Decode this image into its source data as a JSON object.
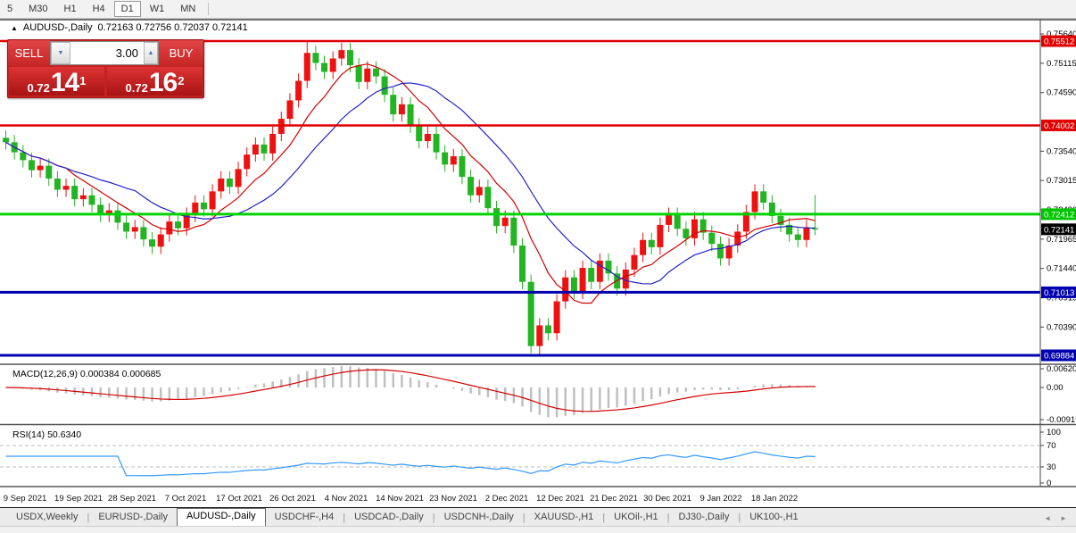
{
  "toolbar": {
    "timeframes": [
      {
        "label": "5",
        "active": false
      },
      {
        "label": "M30",
        "active": false
      },
      {
        "label": "H1",
        "active": false
      },
      {
        "label": "H4",
        "active": false
      },
      {
        "label": "D1",
        "active": true
      },
      {
        "label": "W1",
        "active": false
      },
      {
        "label": "MN",
        "active": false
      }
    ]
  },
  "chart": {
    "collapse_arrow": "▲",
    "title_symbol": "AUDUSD-,Daily",
    "title_ohlc": "0.72163 0.72756 0.72037 0.72141"
  },
  "trade_panel": {
    "sell_label": "SELL",
    "buy_label": "BUY",
    "volume": "3.00",
    "sell_price": {
      "big": "0.72",
      "main": "14",
      "sup": "1"
    },
    "buy_price": {
      "big": "0.72",
      "main": "16",
      "sup": "2"
    }
  },
  "price_axis": {
    "ticks": [
      "0.75640",
      "0.75115",
      "0.74590",
      "0.73540",
      "0.73015",
      "0.72490",
      "0.71965",
      "0.71440",
      "0.70915",
      "0.70390"
    ],
    "level_boxes": [
      {
        "text": "0.75512",
        "color": "#e00000",
        "text_color": "#ffffff"
      },
      {
        "text": "0.74002",
        "color": "#e00000",
        "text_color": "#ffffff"
      },
      {
        "text": "0.72412",
        "color": "#00c400",
        "text_color": "#ffffff"
      },
      {
        "text": "0.71013",
        "color": "#0000b0",
        "text_color": "#ffffff"
      },
      {
        "text": "0.69884",
        "color": "#0000b0",
        "text_color": "#ffffff"
      }
    ],
    "current_price_box": {
      "text": "0.72141",
      "color": "#000000",
      "text_color": "#ffffff"
    }
  },
  "macd_panel": {
    "label": "MACD(12,26,9) 0.000384 0.000685",
    "axis": [
      "0.006201",
      "0.00",
      "-0.00919"
    ]
  },
  "rsi_panel": {
    "label": "RSI(14) 50.6340",
    "axis": [
      "100",
      "70",
      "30",
      "0"
    ]
  },
  "tabs": {
    "items": [
      {
        "label": "USDX,Weekly",
        "active": false
      },
      {
        "label": "EURUSD-,Daily",
        "active": false
      },
      {
        "label": "AUDUSD-,Daily",
        "active": true
      },
      {
        "label": "USDCHF-,H4",
        "active": false
      },
      {
        "label": "USDCAD-,Daily",
        "active": false
      },
      {
        "label": "USDCNH-,Daily",
        "active": false
      },
      {
        "label": "XAUUSD-,H1",
        "active": false
      },
      {
        "label": "UKOil-,H1",
        "active": false
      },
      {
        "label": "DJ30-,Daily",
        "active": false
      },
      {
        "label": "UK100-,H1",
        "active": false
      }
    ]
  },
  "chart_data": {
    "type": "candlestick",
    "symbol": "AUDUSD",
    "timeframe": "Daily",
    "current_bar": {
      "open": 0.72163,
      "high": 0.72756,
      "low": 0.72037,
      "close": 0.72141
    },
    "price_range": {
      "top": 0.75864,
      "bottom": 0.69724
    },
    "levels": [
      {
        "price": 0.75512,
        "color": "#e00000",
        "width": 2.5
      },
      {
        "price": 0.74002,
        "color": "#e00000",
        "width": 2.5
      },
      {
        "price": 0.72412,
        "color": "#00d300",
        "width": 3
      },
      {
        "price": 0.71013,
        "color": "#0000b0",
        "width": 3
      },
      {
        "price": 0.69884,
        "color": "#0000b0",
        "width": 3
      }
    ],
    "colors": {
      "bull_candle": "#ee1111",
      "bear_candle": "#22b422",
      "ma_fast": "#d40000",
      "ma_slow": "#2222c8",
      "macd_hist": "#c0c0c0",
      "macd_signal": "#d40000",
      "rsi_line": "#3399ff",
      "rsi_levels_dash": "#bbbbbb"
    },
    "first_open": 0.7378,
    "wick": 0.0013,
    "closes": [
      0.737,
      0.7352,
      0.7338,
      0.732,
      0.7328,
      0.7305,
      0.7285,
      0.7292,
      0.7268,
      0.7275,
      0.7258,
      0.724,
      0.7248,
      0.7226,
      0.721,
      0.7218,
      0.7196,
      0.7183,
      0.7205,
      0.7228,
      0.7216,
      0.724,
      0.7262,
      0.725,
      0.7282,
      0.7305,
      0.729,
      0.7322,
      0.7348,
      0.7366,
      0.735,
      0.7385,
      0.7412,
      0.7445,
      0.748,
      0.753,
      0.7512,
      0.7496,
      0.752,
      0.7535,
      0.7508,
      0.7478,
      0.7502,
      0.7488,
      0.7455,
      0.742,
      0.7438,
      0.74,
      0.7372,
      0.7385,
      0.7352,
      0.733,
      0.7345,
      0.7308,
      0.7275,
      0.729,
      0.7252,
      0.722,
      0.7235,
      0.7185,
      0.712,
      0.7005,
      0.7042,
      0.7028,
      0.7085,
      0.7128,
      0.7102,
      0.7145,
      0.712,
      0.7158,
      0.7135,
      0.7108,
      0.7142,
      0.7168,
      0.7195,
      0.7182,
      0.7222,
      0.724,
      0.7215,
      0.7198,
      0.7232,
      0.7208,
      0.7188,
      0.7162,
      0.7185,
      0.721,
      0.7245,
      0.7282,
      0.7262,
      0.7238,
      0.7222,
      0.7205,
      0.7195,
      0.7218,
      0.7214
    ],
    "overrides": {
      "35": {
        "high": 0.7551
      },
      "61": {
        "low": 0.6992
      },
      "62": {
        "low": 0.6988
      },
      "94": {
        "open": 0.72163,
        "high": 0.72756,
        "low": 0.72037,
        "close": 0.72141
      }
    },
    "ma_fast_period": 8,
    "ma_slow_period": 16,
    "macd": {
      "fast": 12,
      "slow": 26,
      "signal": 9,
      "value": 0.000384,
      "signal_value": 0.000685
    },
    "rsi": {
      "period": 14,
      "value": 50.634,
      "upper_level": 70,
      "lower_level": 30
    },
    "x_axis": {
      "labels": [
        "9 Sep 2021",
        "19 Sep 2021",
        "28 Sep 2021",
        "7 Oct 2021",
        "17 Oct 2021",
        "26 Oct 2021",
        "4 Nov 2021",
        "14 Nov 2021",
        "23 Nov 2021",
        "2 Dec 2021",
        "12 Dec 2021",
        "21 Dec 2021",
        "30 Dec 2021",
        "9 Jan 2022",
        "18 Jan 2022"
      ]
    }
  }
}
